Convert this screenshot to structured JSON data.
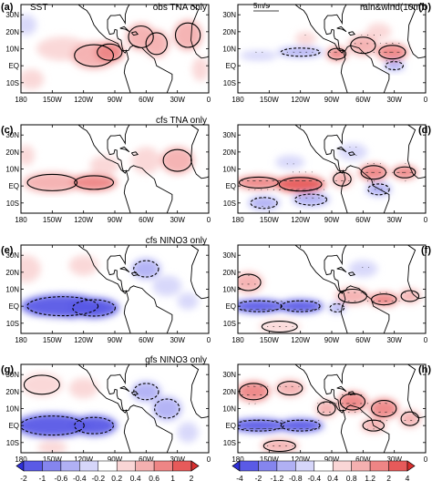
{
  "figure": {
    "panels": [
      {
        "id": "a",
        "letter": "(a)",
        "left_title": "SST",
        "right_title": "obs TNA only",
        "col": 0,
        "row": 0,
        "field": "sst_obs_tna"
      },
      {
        "id": "b",
        "letter": "(b)",
        "left_title": "",
        "right_title": "rain&wind(10m)",
        "col": 1,
        "row": 0,
        "field": "rain_obs_tna"
      },
      {
        "id": "c",
        "letter": "(c)",
        "left_title": "",
        "right_title": "cfs TNA only",
        "col": 0,
        "row": 1,
        "field": "sst_cfs_tna"
      },
      {
        "id": "d",
        "letter": "(d)",
        "left_title": "",
        "right_title": "",
        "col": 1,
        "row": 1,
        "field": "rain_cfs_tna"
      },
      {
        "id": "e",
        "letter": "(e)",
        "left_title": "",
        "right_title": "cfs NINO3 only",
        "col": 0,
        "row": 2,
        "field": "sst_cfs_nino3"
      },
      {
        "id": "f",
        "letter": "(f)",
        "left_title": "",
        "right_title": "",
        "col": 1,
        "row": 2,
        "field": "rain_cfs_nino3"
      },
      {
        "id": "g",
        "letter": "(g)",
        "left_title": "",
        "right_title": "gfs NINO3 only",
        "col": 0,
        "row": 3,
        "field": "sst_gfs_nino3"
      },
      {
        "id": "h",
        "letter": "(h)",
        "left_title": "",
        "right_title": "",
        "col": 1,
        "row": 3,
        "field": "rain_gfs_nino3"
      }
    ],
    "reference_vector_label": "5m/s",
    "lat_tick_labels": [
      "30N",
      "20N",
      "10N",
      "EQ",
      "10S"
    ],
    "lon_tick_labels": [
      "180",
      "150W",
      "120W",
      "90W",
      "60W",
      "30W",
      "0"
    ],
    "colorbars": [
      {
        "name": "SST",
        "levels": [
          "-2",
          "-1",
          "-0.6",
          "-0.4",
          "-0.2",
          "0.2",
          "0.4",
          "0.6",
          "1",
          "2"
        ],
        "colors": [
          "#2f2fd8",
          "#5a5ae6",
          "#8585ee",
          "#b0b0f4",
          "#d6d6fa",
          "#ffffff",
          "#fad6d6",
          "#f4b0b0",
          "#ee8585",
          "#e65a5a",
          "#d82f2f"
        ]
      },
      {
        "name": "rain",
        "levels": [
          "-4",
          "-2",
          "-1.2",
          "-0.8",
          "-0.4",
          "0.4",
          "0.8",
          "1.2",
          "2",
          "4"
        ],
        "colors": [
          "#2f2fd8",
          "#5a5ae6",
          "#8585ee",
          "#b0b0f4",
          "#d6d6fa",
          "#ffffff",
          "#fad6d6",
          "#f4b0b0",
          "#ee8585",
          "#e65a5a",
          "#d82f2f"
        ]
      }
    ]
  }
}
